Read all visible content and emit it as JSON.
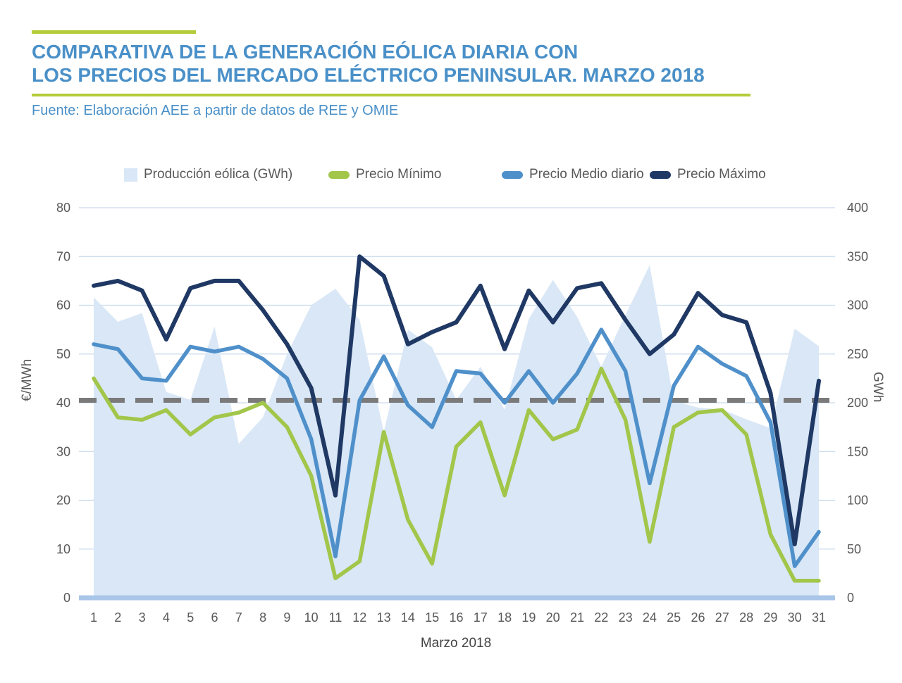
{
  "header": {
    "title_line1": "COMPARATIVA DE LA GENERACIÓN EÓLICA DIARIA CON",
    "title_line2": "LOS PRECIOS DEL MERCADO ELÉCTRICO PENINSULAR. MARZO 2018",
    "source": "Fuente: Elaboración AEE a partir de datos de REE y OMIE"
  },
  "legend": [
    {
      "label": "Producción eólica (GWh)",
      "swatch": "area",
      "color": "#d9e7f6"
    },
    {
      "label": "Precio Mínimo",
      "swatch": "pill",
      "color": "#a2c64a"
    },
    {
      "label": "Precio Medio diario",
      "swatch": "pill",
      "color": "#4f90ca"
    },
    {
      "label": "Precio Máximo",
      "swatch": "pill",
      "color": "#1f3864"
    }
  ],
  "chart_data": {
    "type": "area+line combo",
    "x": [
      1,
      2,
      3,
      4,
      5,
      6,
      7,
      8,
      9,
      10,
      11,
      12,
      13,
      14,
      15,
      16,
      17,
      18,
      19,
      20,
      21,
      22,
      23,
      24,
      25,
      26,
      27,
      28,
      29,
      30,
      31
    ],
    "xlabel": "Marzo 2018",
    "y_left_label": "€/MWh",
    "y_left_range": [
      0,
      80
    ],
    "y_left_ticks": [
      0,
      10,
      20,
      30,
      40,
      50,
      60,
      70,
      80
    ],
    "y_right_label": "GWh",
    "y_right_range": [
      0,
      400
    ],
    "y_right_ticks": [
      0,
      50,
      100,
      150,
      200,
      250,
      300,
      350,
      400
    ],
    "grid": "horizontal",
    "legend_position": "top",
    "reference_line": {
      "axis": "left",
      "value": 40.5,
      "style": "dashed",
      "color": "#7a7a7a"
    },
    "series": [
      {
        "name": "Producción eólica (GWh)",
        "type": "area",
        "axis": "right",
        "color": "#d9e7f6",
        "values": [
          308,
          283,
          292,
          211,
          203,
          278,
          158,
          185,
          250,
          300,
          317,
          285,
          170,
          275,
          257,
          203,
          237,
          193,
          286,
          326,
          288,
          237,
          290,
          341,
          202,
          195,
          193,
          183,
          174,
          276,
          258
        ]
      },
      {
        "name": "Precio Mínimo",
        "type": "line",
        "axis": "left",
        "color": "#a2c64a",
        "values": [
          45,
          37,
          36.5,
          38.5,
          33.5,
          37,
          38,
          40,
          35,
          25,
          4,
          7.5,
          34,
          16,
          7,
          31,
          36,
          21,
          38.5,
          32.5,
          34.5,
          47,
          36.5,
          11.5,
          35,
          38,
          38.5,
          33.5,
          13,
          3.5,
          3.5
        ]
      },
      {
        "name": "Precio Medio diario",
        "type": "line",
        "axis": "left",
        "color": "#4f90ca",
        "values": [
          52,
          51,
          45,
          44.5,
          51.5,
          50.5,
          51.5,
          49,
          45,
          32.5,
          8.5,
          40.5,
          49.5,
          39.5,
          35,
          46.5,
          46,
          40,
          46.5,
          40,
          46,
          55,
          46.5,
          23.5,
          43.5,
          51.5,
          48,
          45.5,
          36,
          6.5,
          13.5
        ]
      },
      {
        "name": "Precio Máximo",
        "type": "line",
        "axis": "left",
        "color": "#1f3864",
        "values": [
          64,
          65,
          63,
          53,
          63.5,
          65,
          65,
          59,
          52,
          43,
          21,
          70,
          66,
          52,
          54.5,
          56.5,
          64,
          51,
          63,
          56.5,
          63.5,
          64.5,
          57,
          50,
          54,
          62.5,
          58,
          56.5,
          42,
          11,
          44.5
        ]
      }
    ]
  },
  "style_colors": {
    "accent_green": "#b4cc38",
    "title_blue": "#4a90c8",
    "gridline": "#c9d9ec",
    "baseline": "#a9c6e8",
    "tick_text": "#595959"
  }
}
